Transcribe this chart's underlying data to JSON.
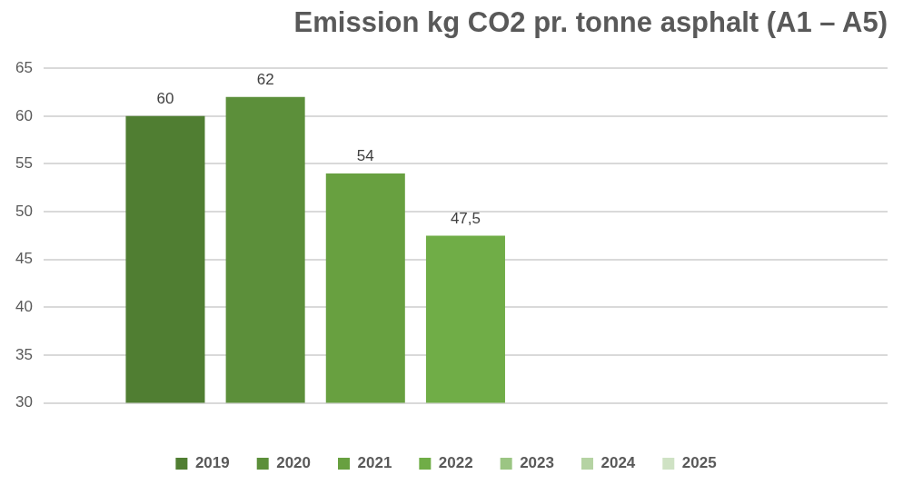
{
  "chart_data": {
    "type": "bar",
    "title": "Emission kg CO2 pr. tonne asphalt (A1 – A5)",
    "categories": [
      null
    ],
    "series": [
      {
        "name": "2019",
        "color": "#507e32",
        "values": [
          60
        ],
        "value_labels": [
          "60"
        ]
      },
      {
        "name": "2020",
        "color": "#5c8f3a",
        "values": [
          62
        ],
        "value_labels": [
          "62"
        ]
      },
      {
        "name": "2021",
        "color": "#68a040",
        "values": [
          54
        ],
        "value_labels": [
          "54"
        ]
      },
      {
        "name": "2022",
        "color": "#70ad47",
        "values": [
          47.5
        ],
        "value_labels": [
          "47,5"
        ]
      },
      {
        "name": "2023",
        "color": "#9bc583",
        "values": [
          null
        ],
        "value_labels": [
          null
        ]
      },
      {
        "name": "2024",
        "color": "#b5d3a3",
        "values": [
          null
        ],
        "value_labels": [
          null
        ]
      },
      {
        "name": "2025",
        "color": "#cfe2c4",
        "values": [
          null
        ],
        "value_labels": [
          null
        ]
      }
    ],
    "ylim": [
      30,
      65
    ],
    "yticks": [
      30,
      35,
      40,
      45,
      50,
      55,
      60,
      65
    ],
    "grid": "y",
    "legend": "bottom"
  }
}
